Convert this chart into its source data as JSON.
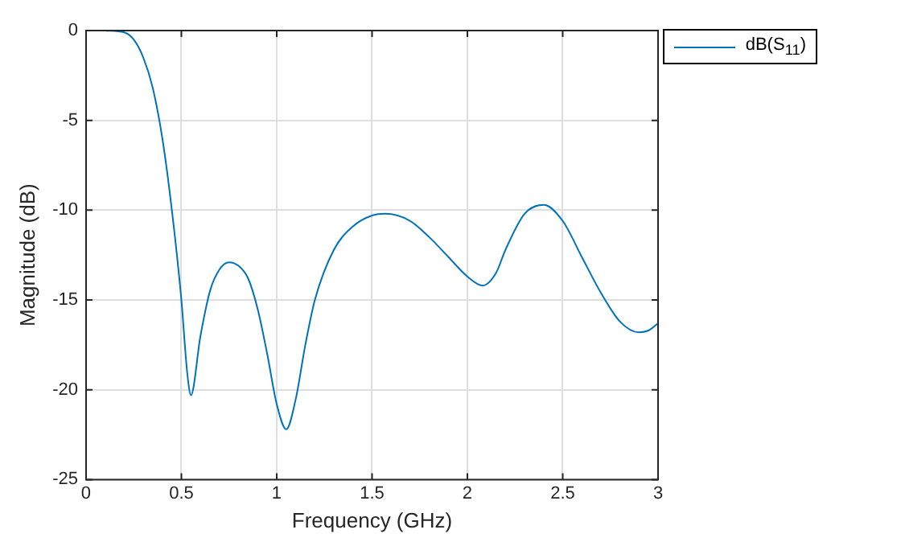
{
  "chart_data": {
    "type": "line",
    "xlabel": "Frequency (GHz)",
    "ylabel": "Magnitude (dB)",
    "xlim": [
      0,
      3
    ],
    "xticks": [
      0,
      0.5,
      1,
      1.5,
      2,
      2.5,
      3
    ],
    "ylim": [
      -25,
      0
    ],
    "yticks": [
      -25,
      -20,
      -15,
      -10,
      -5,
      0
    ],
    "grid": true,
    "legend": "top right",
    "marker": "none",
    "line_style": "solid",
    "x": [
      0.1,
      0.2,
      0.25,
      0.3,
      0.35,
      0.4,
      0.45,
      0.5,
      0.53,
      0.55,
      0.6,
      0.65,
      0.7,
      0.75,
      0.8,
      0.85,
      0.9,
      0.95,
      1.0,
      1.05,
      1.1,
      1.15,
      1.2,
      1.3,
      1.4,
      1.5,
      1.57,
      1.7,
      1.8,
      1.9,
      2.0,
      2.08,
      2.15,
      2.2,
      2.3,
      2.4,
      2.5,
      2.6,
      2.7,
      2.8,
      2.9,
      2.95,
      3.0
    ],
    "series": [
      {
        "name": "dB(S$_{11}$)",
        "color": "#0072bd",
        "values": [
          0,
          -0.1,
          -0.5,
          -1.5,
          -3.2,
          -6,
          -10,
          -15,
          -19,
          -20.3,
          -17,
          -14.5,
          -13.3,
          -12.9,
          -13.1,
          -13.8,
          -15.5,
          -18,
          -20.8,
          -22.2,
          -20.5,
          -17.5,
          -15,
          -12.2,
          -10.9,
          -10.3,
          -10.2,
          -10.6,
          -11.5,
          -12.6,
          -13.7,
          -14.2,
          -13.5,
          -12.2,
          -10.2,
          -9.7,
          -10.6,
          -12.6,
          -14.6,
          -16.2,
          -16.8,
          -16.7,
          -16.3
        ]
      }
    ]
  }
}
